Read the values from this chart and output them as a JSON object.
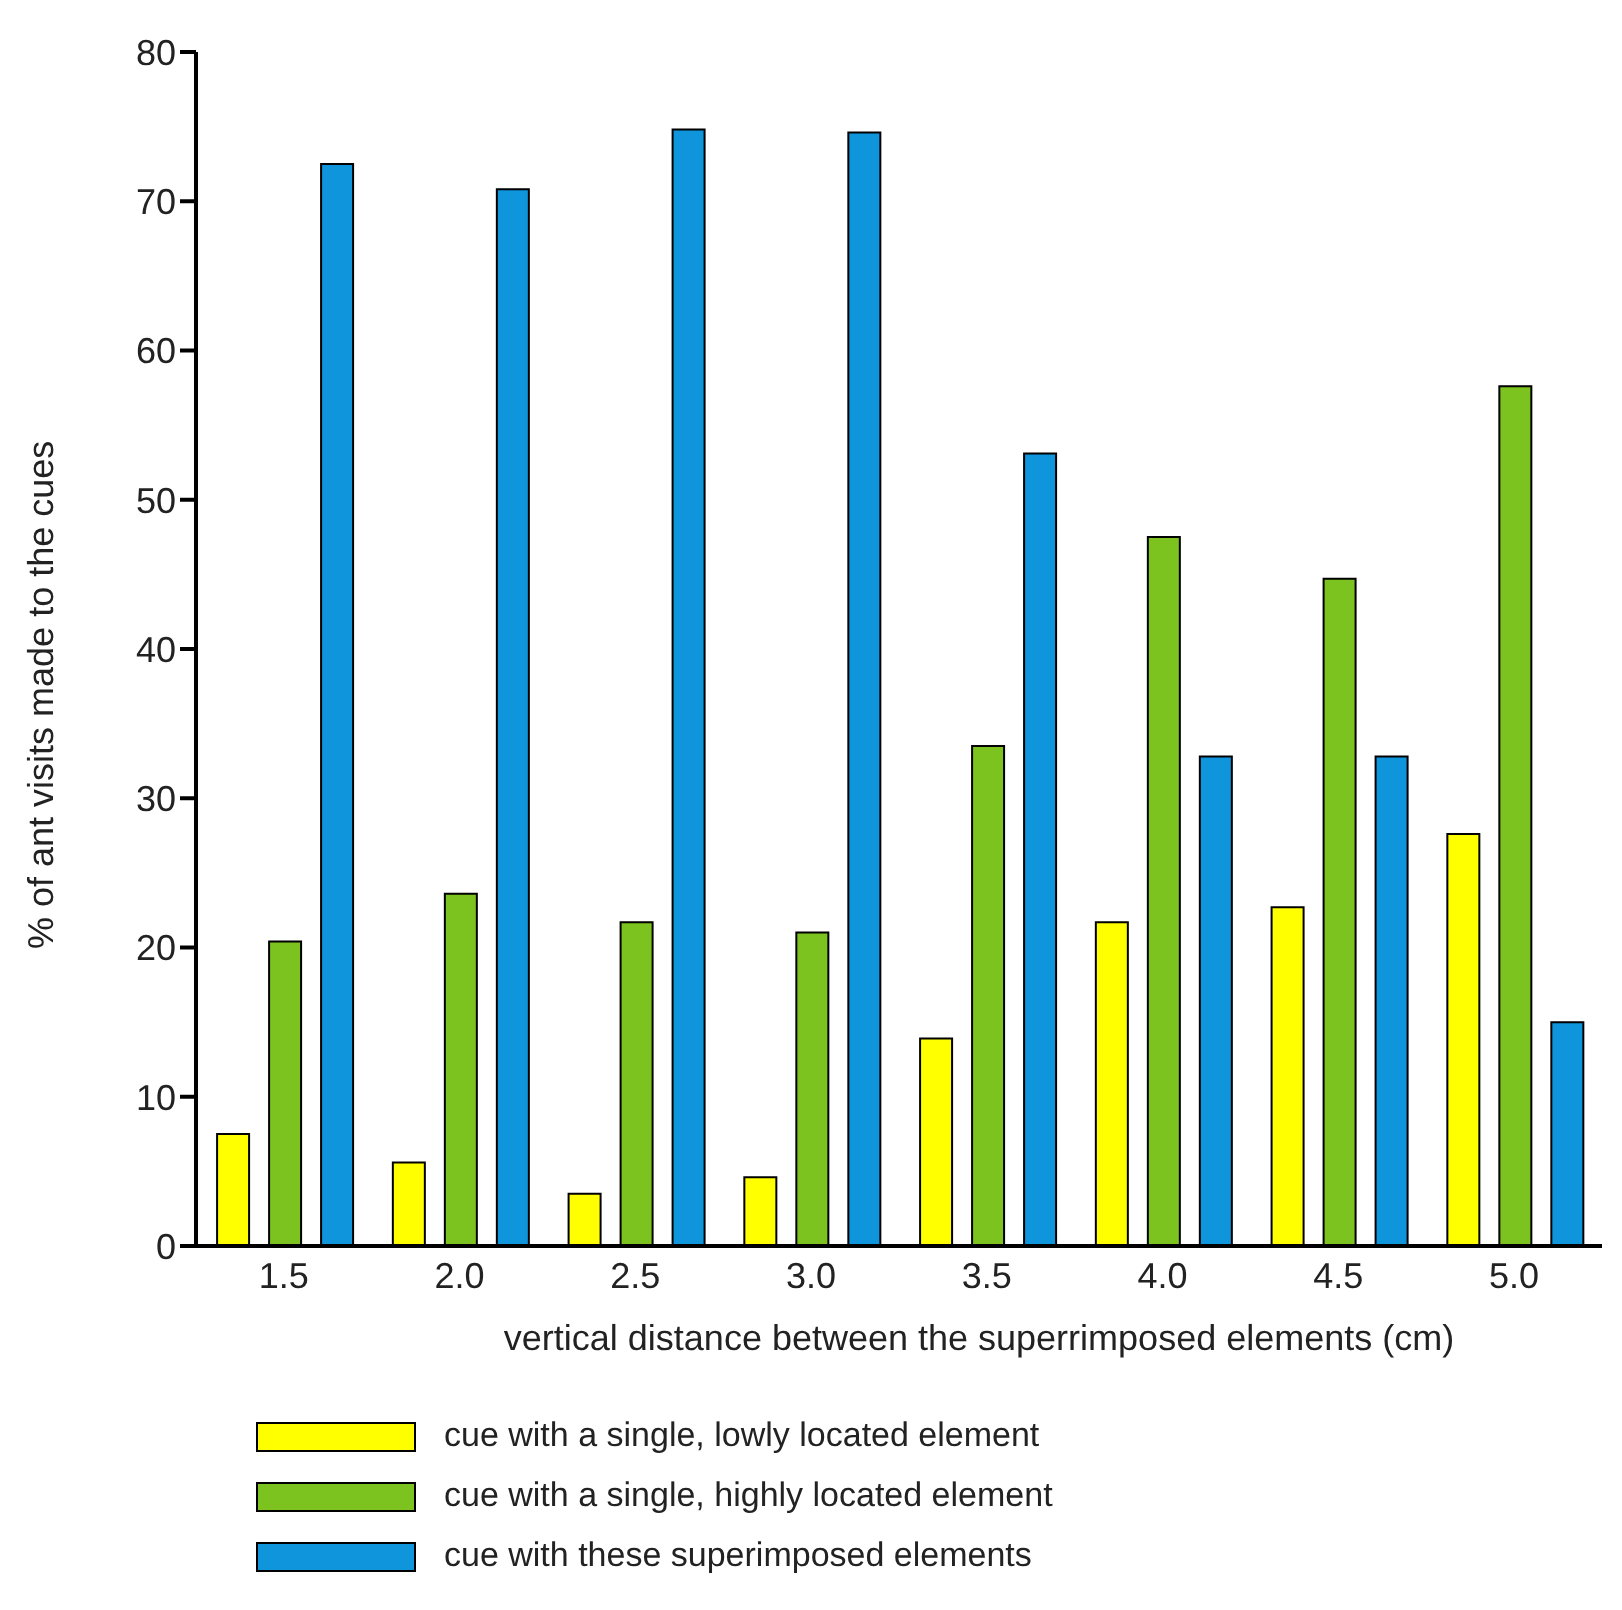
{
  "chart_data": {
    "type": "bar",
    "xlabel": "vertical distance between the superrimposed elements (cm)",
    "ylabel": "% of ant visits made to the cues",
    "categories": [
      "1.5",
      "2.0",
      "2.5",
      "3.0",
      "3.5",
      "4.0",
      "4.5",
      "5.0"
    ],
    "series": [
      {
        "name": "cue with a single, lowly located element",
        "color": "#ffff00",
        "values": [
          7.5,
          5.6,
          3.5,
          4.6,
          13.9,
          21.7,
          22.7,
          27.6
        ]
      },
      {
        "name": "cue with a single, highly located element",
        "color": "#7dc31f",
        "values": [
          20.4,
          23.6,
          21.7,
          21.0,
          33.5,
          47.5,
          44.7,
          57.6
        ]
      },
      {
        "name": "cue with these superimposed elements",
        "color": "#0f95dc",
        "values": [
          72.5,
          70.8,
          74.8,
          74.6,
          53.1,
          32.8,
          32.8,
          15.0
        ]
      }
    ],
    "ylim": [
      0,
      80
    ],
    "yticks": [
      0,
      10,
      20,
      30,
      40,
      50,
      60,
      70,
      80
    ],
    "grid": false,
    "legend": "bottom"
  }
}
